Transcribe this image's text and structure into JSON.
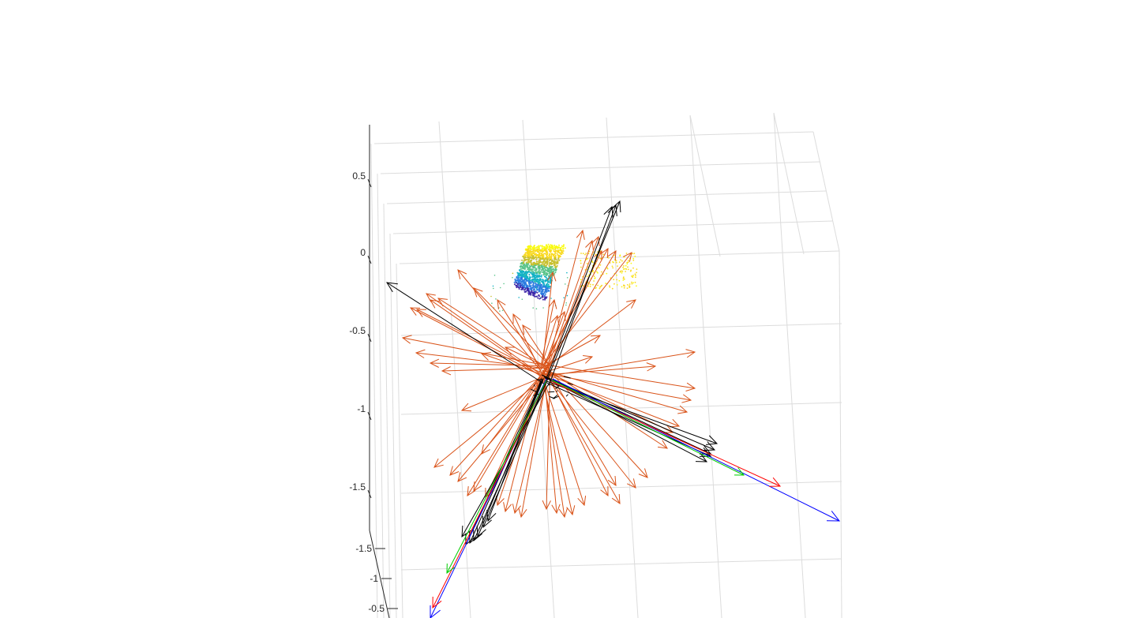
{
  "chart_data": {
    "type": "scatter",
    "title": "",
    "xlabel": "",
    "ylabel": "",
    "zlabel": "",
    "grid": true,
    "view": "3d",
    "z_ticks": [
      {
        "label": "0.5",
        "value": 0.5
      },
      {
        "label": "0",
        "value": 0
      },
      {
        "label": "-0.5",
        "value": -0.5
      },
      {
        "label": "-1",
        "value": -1
      },
      {
        "label": "-1.5",
        "value": -1.5
      }
    ],
    "y_ticks": [
      {
        "label": "-1.5",
        "value": -1.5
      },
      {
        "label": "-1",
        "value": -1
      },
      {
        "label": "-0.5",
        "value": -0.5
      }
    ],
    "colors": {
      "normals": "#d95319",
      "frames": "#000000",
      "axis_x": "#ff0000",
      "axis_y": "#00cc00",
      "axis_z": "#0000ff",
      "grid": "#dcdcdc",
      "axis": "#262626",
      "cloud_colormap": [
        "#3d26a8",
        "#2c7ce0",
        "#12b2c6",
        "#5ac48a",
        "#c8c02e",
        "#f9d91f",
        "#f9fb0e"
      ]
    },
    "series": [
      {
        "kind": "point-cloud"
      },
      {
        "kind": "surface-normals"
      },
      {
        "kind": "camera-frames"
      },
      {
        "kind": "coordinate-axes"
      }
    ]
  }
}
